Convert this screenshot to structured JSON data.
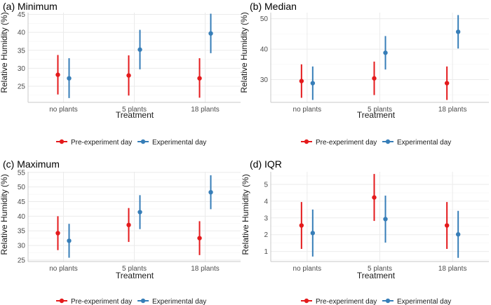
{
  "colors": {
    "pre": "#e41a1c",
    "exp": "#377eb8",
    "grid": "#ebebeb"
  },
  "legend": {
    "pre_label": "Pre-experiment day",
    "exp_label": "Experimental day"
  },
  "chart_data": [
    {
      "type": "scatter",
      "title": "(a) Minimum",
      "xlabel": "Treatment",
      "ylabel": "Relative Humidity (%)",
      "categories": [
        "no plants",
        "5 plants",
        "18 plants"
      ],
      "ylim": [
        20.5,
        45.5
      ],
      "yticks": [
        25,
        30,
        35,
        40,
        45
      ],
      "series": [
        {
          "name": "Pre-experiment day",
          "mean": [
            28.2,
            28.0,
            27.2
          ],
          "lower": [
            22.7,
            22.4,
            21.8
          ],
          "upper": [
            33.7,
            33.6,
            32.8
          ]
        },
        {
          "name": "Experimental day",
          "mean": [
            27.2,
            35.2,
            39.7
          ],
          "lower": [
            21.7,
            29.7,
            34.2
          ],
          "upper": [
            32.8,
            40.7,
            45.2
          ]
        }
      ]
    },
    {
      "type": "scatter",
      "title": "(b) Median",
      "xlabel": "Treatment",
      "ylabel": "Relative Humidity (%)",
      "categories": [
        "no plants",
        "5 plants",
        "18 plants"
      ],
      "ylim": [
        22.5,
        52
      ],
      "yticks": [
        30,
        40,
        50
      ],
      "series": [
        {
          "name": "Pre-experiment day",
          "mean": [
            29.5,
            30.4,
            28.8
          ],
          "lower": [
            24.0,
            24.9,
            23.3
          ],
          "upper": [
            35.0,
            35.9,
            34.3
          ]
        },
        {
          "name": "Experimental day",
          "mean": [
            28.8,
            38.8,
            45.7
          ],
          "lower": [
            23.3,
            33.3,
            40.2
          ],
          "upper": [
            34.3,
            44.3,
            51.2
          ]
        }
      ]
    },
    {
      "type": "scatter",
      "title": "(c) Maximum",
      "xlabel": "Treatment",
      "ylabel": "Relative Humidity (%)",
      "categories": [
        "no plants",
        "5 plants",
        "18 plants"
      ],
      "ylim": [
        24.5,
        55.2
      ],
      "yticks": [
        25,
        30,
        35,
        40,
        45,
        50,
        55
      ],
      "series": [
        {
          "name": "Pre-experiment day",
          "mean": [
            34.2,
            37.0,
            32.5
          ],
          "lower": [
            28.4,
            31.2,
            26.7
          ],
          "upper": [
            40.0,
            42.8,
            38.3
          ]
        },
        {
          "name": "Experimental day",
          "mean": [
            31.6,
            41.4,
            48.2
          ],
          "lower": [
            25.8,
            35.6,
            42.4
          ],
          "upper": [
            37.4,
            47.2,
            54.0
          ]
        }
      ]
    },
    {
      "type": "scatter",
      "title": "(d) IQR",
      "xlabel": "Treatment",
      "ylabel": "Relative Humidity (%)",
      "categories": [
        "no plants",
        "5 plants",
        "18 plants"
      ],
      "ylim": [
        0.4,
        5.75
      ],
      "yticks": [
        1,
        2,
        3,
        4,
        5
      ],
      "series": [
        {
          "name": "Pre-experiment day",
          "mean": [
            2.55,
            4.22,
            2.55
          ],
          "lower": [
            1.15,
            2.82,
            1.15
          ],
          "upper": [
            3.95,
            5.62,
            3.95
          ]
        },
        {
          "name": "Experimental day",
          "mean": [
            2.1,
            2.93,
            2.02
          ],
          "lower": [
            0.7,
            1.53,
            0.62
          ],
          "upper": [
            3.5,
            4.33,
            3.42
          ]
        }
      ]
    }
  ]
}
